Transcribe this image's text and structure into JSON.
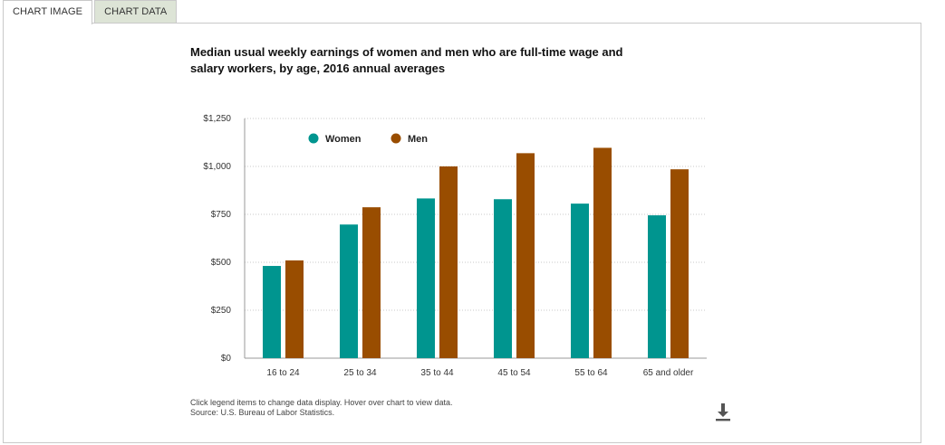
{
  "tabs": [
    {
      "label": "CHART IMAGE",
      "active": true
    },
    {
      "label": "CHART DATA",
      "active": false
    }
  ],
  "chart_data": {
    "type": "bar",
    "title_lines": [
      "Median usual weekly earnings of women and men who are full-time wage and",
      "salary workers, by age, 2016 annual averages"
    ],
    "categories": [
      "16 to 24",
      "25 to 34",
      "35 to 44",
      "45 to 54",
      "55 to 64",
      "65 and older"
    ],
    "series": [
      {
        "name": "Women",
        "color": "#00958f",
        "values": [
          481,
          697,
          833,
          829,
          806,
          745
        ]
      },
      {
        "name": "Men",
        "color": "#994d00",
        "values": [
          510,
          787,
          1000,
          1069,
          1097,
          985
        ]
      }
    ],
    "ylim": [
      0,
      1250
    ],
    "yticks": [
      0,
      250,
      500,
      750,
      1000,
      1250
    ],
    "ytick_labels": [
      "$0",
      "$250",
      "$500",
      "$750",
      "$1,000",
      "$1,250"
    ],
    "grid": true,
    "legend_position": "top-left"
  },
  "footnote": {
    "line1": "Click legend items to change data display. Hover over chart to view data.",
    "line2": "Source: U.S. Bureau of Labor Statistics."
  },
  "icons": {
    "download": "download-icon"
  }
}
